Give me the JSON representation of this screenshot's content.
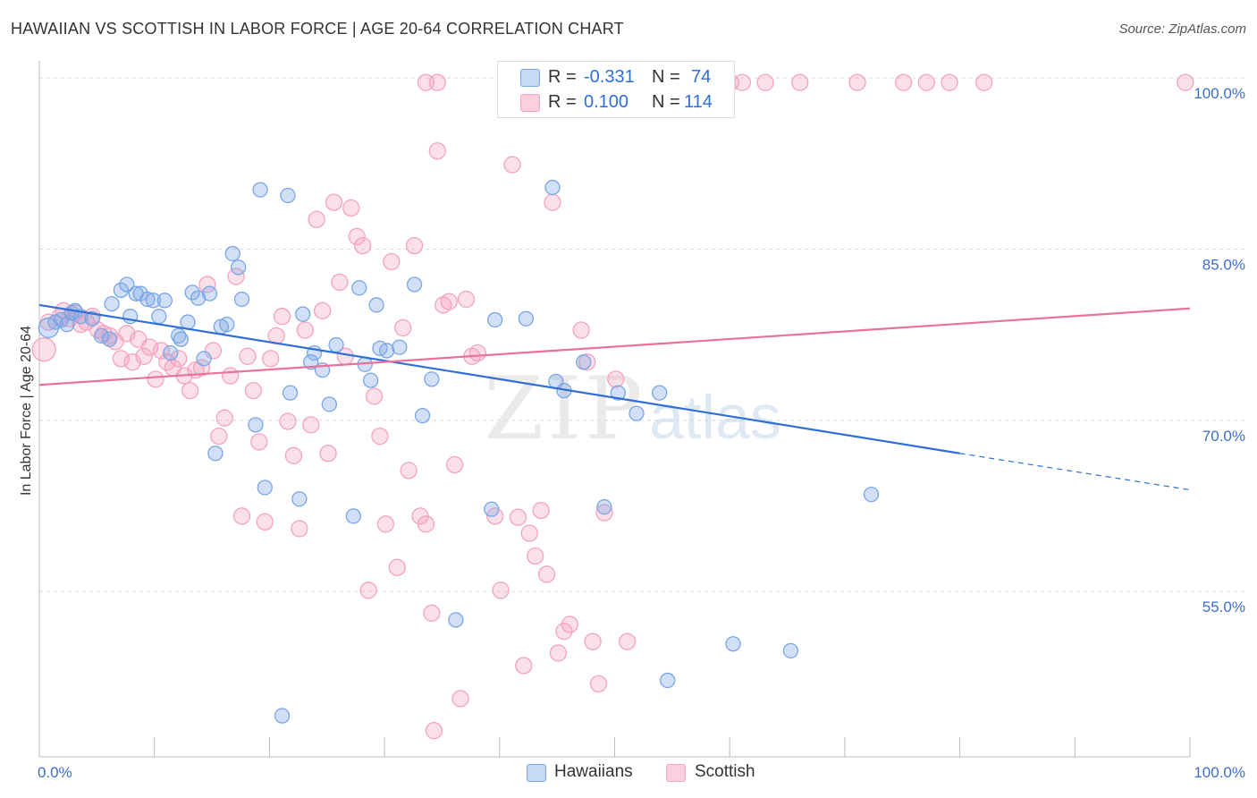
{
  "header": {
    "title": "HAWAIIAN VS SCOTTISH IN LABOR FORCE | AGE 20-64 CORRELATION CHART",
    "source": "Source: ZipAtlas.com"
  },
  "legend": {
    "r_label": "R =",
    "n_label": "N =",
    "hawaiians": {
      "r": "-0.331",
      "n": "74"
    },
    "scottish": {
      "r": "0.100",
      "n": "114"
    }
  },
  "bottom_legend": {
    "hawaiians": "Hawaiians",
    "scottish": "Scottish"
  },
  "watermark": {
    "zip": "ZIP",
    "atlas": "atlas"
  },
  "chart_data": {
    "type": "scatter",
    "title": "HAWAIIAN VS SCOTTISH IN LABOR FORCE | AGE 20-64 CORRELATION CHART",
    "ylabel": "In Labor Force | Age 20-64",
    "xlabel": "",
    "x_tick_labels": [
      "0.0%",
      "100.0%"
    ],
    "y_tick_labels": [
      "100.0%",
      "85.0%",
      "70.0%",
      "55.0%"
    ],
    "y_ticks": [
      100,
      85,
      70,
      55
    ],
    "xlim": [
      0,
      100
    ],
    "ylim": [
      40.5,
      101.5
    ],
    "grid": true,
    "legend_position": "top-center",
    "colors": {
      "hawaiians": "#7aa6e6",
      "scottish": "#f4a3bf",
      "hawaiians_line": "#2f6fd6",
      "scottish_line": "#e8729b"
    },
    "series": [
      {
        "name": "Hawaiians",
        "trend": {
          "x": [
            0,
            80
          ],
          "y": [
            80.1,
            67.1
          ],
          "dashed_to": [
            100,
            63.9
          ]
        },
        "points": [
          [
            0.8,
            78.1
          ],
          [
            1.4,
            78.6
          ],
          [
            1.9,
            78.8
          ],
          [
            2.4,
            78.4
          ],
          [
            2.8,
            79.4
          ],
          [
            3.1,
            79.6
          ],
          [
            3.6,
            79.1
          ],
          [
            4.6,
            78.9
          ],
          [
            5.4,
            77.4
          ],
          [
            6.1,
            77.1
          ],
          [
            6.3,
            80.2
          ],
          [
            7.1,
            81.4
          ],
          [
            7.6,
            81.9
          ],
          [
            7.9,
            79.1
          ],
          [
            8.4,
            81.1
          ],
          [
            8.8,
            81.1
          ],
          [
            9.4,
            80.6
          ],
          [
            9.9,
            80.5
          ],
          [
            10.4,
            79.1
          ],
          [
            10.9,
            80.5
          ],
          [
            11.4,
            75.9
          ],
          [
            12.1,
            77.4
          ],
          [
            12.3,
            77.1
          ],
          [
            12.9,
            78.6
          ],
          [
            13.3,
            81.2
          ],
          [
            13.8,
            80.7
          ],
          [
            14.3,
            75.4
          ],
          [
            14.8,
            81.1
          ],
          [
            15.3,
            67.1
          ],
          [
            15.8,
            78.2
          ],
          [
            16.3,
            78.4
          ],
          [
            16.8,
            84.6
          ],
          [
            17.3,
            83.4
          ],
          [
            17.6,
            80.6
          ],
          [
            18.8,
            69.6
          ],
          [
            19.2,
            90.2
          ],
          [
            19.6,
            64.1
          ],
          [
            21.1,
            44.1
          ],
          [
            21.6,
            89.7
          ],
          [
            21.8,
            72.4
          ],
          [
            22.6,
            63.1
          ],
          [
            22.9,
            79.3
          ],
          [
            23.6,
            75.1
          ],
          [
            23.9,
            75.9
          ],
          [
            24.6,
            74.4
          ],
          [
            25.2,
            71.4
          ],
          [
            25.8,
            76.6
          ],
          [
            27.3,
            61.6
          ],
          [
            27.8,
            81.6
          ],
          [
            28.3,
            74.9
          ],
          [
            28.8,
            73.5
          ],
          [
            29.3,
            80.1
          ],
          [
            29.6,
            76.3
          ],
          [
            30.2,
            76.1
          ],
          [
            31.3,
            76.4
          ],
          [
            32.6,
            81.9
          ],
          [
            33.3,
            70.4
          ],
          [
            34.1,
            73.6
          ],
          [
            36.2,
            52.5
          ],
          [
            39.3,
            62.2
          ],
          [
            39.6,
            78.8
          ],
          [
            42.3,
            78.9
          ],
          [
            44.6,
            90.4
          ],
          [
            44.9,
            73.4
          ],
          [
            45.6,
            72.6
          ],
          [
            47.3,
            75.1
          ],
          [
            49.1,
            62.4
          ],
          [
            50.3,
            72.4
          ],
          [
            51.9,
            70.6
          ],
          [
            53.9,
            72.4
          ],
          [
            54.6,
            47.2
          ],
          [
            60.3,
            50.4
          ],
          [
            65.3,
            49.8
          ],
          [
            72.3,
            63.5
          ]
        ]
      },
      {
        "name": "Scottish",
        "trend": {
          "x": [
            0,
            100
          ],
          "y": [
            73.1,
            79.8
          ]
        },
        "points": [
          [
            0.4,
            76.2
          ],
          [
            0.8,
            78.6
          ],
          [
            1.8,
            79.1
          ],
          [
            2.1,
            79.6
          ],
          [
            2.6,
            78.9
          ],
          [
            3.1,
            79.4
          ],
          [
            3.6,
            78.4
          ],
          [
            4.1,
            78.6
          ],
          [
            4.6,
            79.1
          ],
          [
            5.1,
            77.9
          ],
          [
            5.6,
            77.6
          ],
          [
            6.1,
            77.4
          ],
          [
            6.6,
            76.9
          ],
          [
            7.1,
            75.4
          ],
          [
            7.6,
            77.6
          ],
          [
            8.1,
            75.1
          ],
          [
            8.6,
            77.1
          ],
          [
            9.1,
            75.6
          ],
          [
            9.6,
            76.4
          ],
          [
            10.1,
            73.6
          ],
          [
            10.6,
            76.1
          ],
          [
            11.1,
            75.1
          ],
          [
            11.6,
            74.6
          ],
          [
            12.1,
            75.4
          ],
          [
            12.6,
            73.9
          ],
          [
            13.1,
            72.6
          ],
          [
            13.6,
            74.4
          ],
          [
            14.1,
            74.6
          ],
          [
            14.6,
            81.9
          ],
          [
            15.1,
            76.1
          ],
          [
            15.6,
            68.6
          ],
          [
            16.1,
            70.2
          ],
          [
            16.6,
            73.9
          ],
          [
            17.1,
            82.6
          ],
          [
            17.6,
            61.6
          ],
          [
            18.1,
            75.6
          ],
          [
            18.6,
            72.6
          ],
          [
            19.1,
            68.1
          ],
          [
            19.6,
            61.1
          ],
          [
            20.1,
            75.4
          ],
          [
            20.6,
            77.4
          ],
          [
            21.1,
            79.1
          ],
          [
            21.6,
            69.9
          ],
          [
            22.1,
            66.9
          ],
          [
            22.6,
            60.5
          ],
          [
            23.1,
            77.9
          ],
          [
            23.6,
            69.6
          ],
          [
            24.1,
            87.6
          ],
          [
            24.6,
            79.6
          ],
          [
            25.1,
            67.1
          ],
          [
            25.6,
            89.1
          ],
          [
            26.1,
            82.1
          ],
          [
            26.6,
            75.6
          ],
          [
            27.1,
            88.6
          ],
          [
            27.6,
            86.1
          ],
          [
            28.1,
            85.3
          ],
          [
            28.6,
            55.1
          ],
          [
            29.1,
            72.1
          ],
          [
            29.6,
            68.6
          ],
          [
            30.1,
            60.9
          ],
          [
            30.6,
            83.9
          ],
          [
            31.1,
            57.1
          ],
          [
            31.6,
            78.1
          ],
          [
            32.1,
            65.6
          ],
          [
            32.6,
            85.3
          ],
          [
            33.1,
            61.6
          ],
          [
            33.6,
            60.9
          ],
          [
            34.1,
            53.1
          ],
          [
            34.6,
            93.6
          ],
          [
            35.1,
            80.1
          ],
          [
            35.6,
            80.4
          ],
          [
            36.1,
            66.1
          ],
          [
            36.6,
            45.6
          ],
          [
            37.1,
            80.6
          ],
          [
            37.6,
            75.6
          ],
          [
            38.1,
            75.9
          ],
          [
            39.6,
            61.6
          ],
          [
            40.1,
            55.1
          ],
          [
            41.1,
            92.4
          ],
          [
            41.6,
            61.5
          ],
          [
            42.1,
            48.5
          ],
          [
            42.6,
            60.1
          ],
          [
            43.1,
            58.1
          ],
          [
            43.6,
            62.1
          ],
          [
            44.1,
            56.5
          ],
          [
            44.6,
            89.1
          ],
          [
            45.1,
            49.6
          ],
          [
            45.6,
            51.5
          ],
          [
            46.1,
            52.1
          ],
          [
            47.1,
            77.9
          ],
          [
            47.6,
            75.1
          ],
          [
            48.1,
            50.6
          ],
          [
            48.6,
            46.9
          ],
          [
            49.1,
            61.9
          ],
          [
            50.1,
            73.6
          ],
          [
            51.1,
            50.6
          ],
          [
            34.3,
            42.8
          ],
          [
            33.6,
            99.6
          ],
          [
            34.6,
            99.6
          ],
          [
            46.1,
            99.6
          ],
          [
            48.6,
            99.6
          ],
          [
            53.1,
            99.6
          ],
          [
            56.1,
            99.6
          ],
          [
            58.1,
            99.6
          ],
          [
            60.1,
            99.6
          ],
          [
            61.1,
            99.6
          ],
          [
            63.1,
            99.6
          ],
          [
            66.1,
            99.6
          ],
          [
            71.1,
            99.6
          ],
          [
            75.1,
            99.6
          ],
          [
            77.1,
            99.6
          ],
          [
            79.1,
            99.6
          ],
          [
            99.6,
            99.6
          ],
          [
            82.1,
            99.6
          ]
        ]
      }
    ]
  }
}
